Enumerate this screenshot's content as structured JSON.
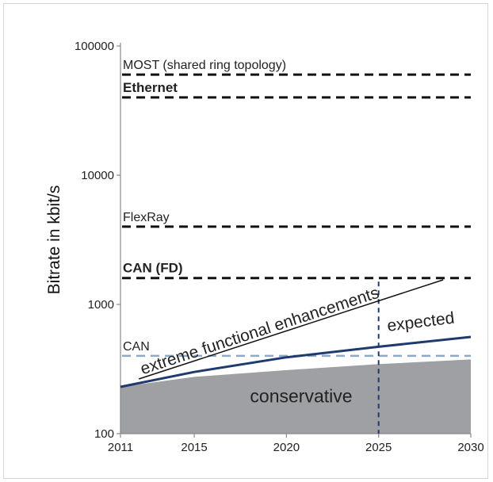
{
  "chart_data": {
    "type": "line",
    "title": "",
    "xlabel": "",
    "ylabel": "Bitrate in kbit/s",
    "x_scale": "linear",
    "y_scale": "log",
    "xlim": [
      2011,
      2030
    ],
    "ylim": [
      100,
      100000
    ],
    "x_ticks": [
      "2011",
      "2015",
      "2020",
      "2025",
      "2030"
    ],
    "y_ticks": [
      "100",
      "1000",
      "10000",
      "100000"
    ],
    "grid": false,
    "reference_lines": [
      {
        "label": "MOST (shared ring topology)",
        "y": 60000,
        "style": "dashed",
        "color": "#111111",
        "bold": false
      },
      {
        "label": "Ethernet",
        "y": 40000,
        "style": "dashed",
        "color": "#111111",
        "bold": true
      },
      {
        "label": "FlexRay",
        "y": 4000,
        "style": "dashed",
        "color": "#111111",
        "bold": false
      },
      {
        "label": "CAN (FD)",
        "y": 1600,
        "style": "dashed",
        "color": "#111111",
        "bold": true
      },
      {
        "label": "CAN",
        "y": 400,
        "style": "dashed",
        "color": "#8ea9c8",
        "bold": false
      }
    ],
    "vertical_line": {
      "x": 2025,
      "ymin": 100,
      "ymax": 1500,
      "style": "dashed",
      "color": "#1f3a6e"
    },
    "series": [
      {
        "name": "extreme functional enhancements",
        "x": [
          2012,
          2028.5
        ],
        "y": [
          265,
          1550
        ],
        "color": "#111111"
      },
      {
        "name": "expected",
        "x": [
          2011,
          2015,
          2020,
          2025,
          2030
        ],
        "y": [
          230,
          300,
          390,
          470,
          560
        ],
        "color": "#1f3a6e"
      },
      {
        "name": "conservative",
        "type": "area",
        "x": [
          2011,
          2015,
          2020,
          2025,
          2030
        ],
        "y": [
          230,
          275,
          310,
          345,
          375
        ],
        "color": "#9ea0a3"
      }
    ]
  }
}
